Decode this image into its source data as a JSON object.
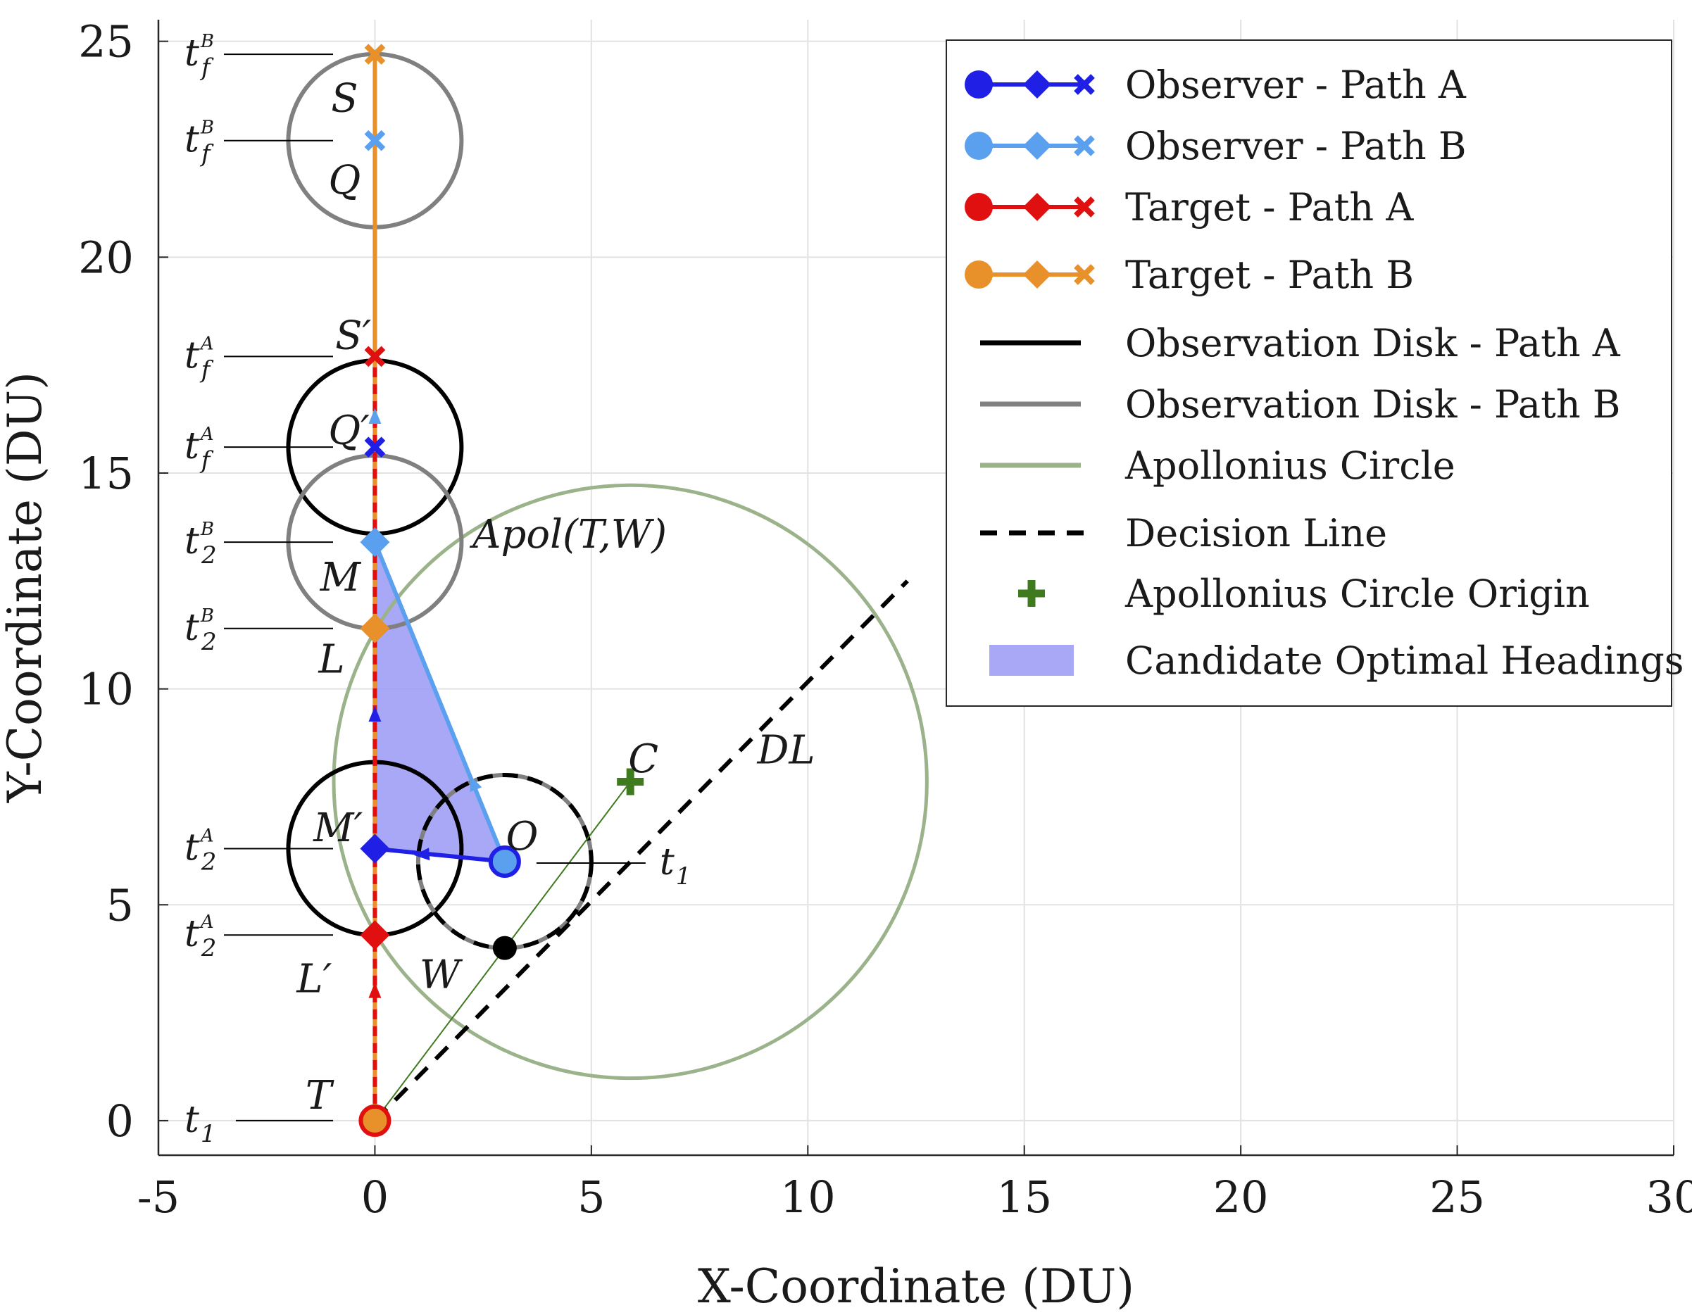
{
  "chart_data": {
    "type": "scatter",
    "xlabel": "X-Coordinate (DU)",
    "ylabel": "Y-Coordinate (DU)",
    "xlim": [
      -5,
      30
    ],
    "ylim": [
      -0.8,
      25.5
    ],
    "xticks": [
      -5,
      0,
      5,
      10,
      15,
      20,
      25,
      30
    ],
    "yticks": [
      0,
      5,
      10,
      15,
      20,
      25
    ],
    "xtick_labels": [
      "-5",
      "0",
      "5",
      "10",
      "15",
      "20",
      "25",
      "30"
    ],
    "ytick_labels": [
      "0",
      "5",
      "10",
      "15",
      "20",
      "25"
    ],
    "grid": true,
    "legend_position": "top-right",
    "colors": {
      "observer_a": "#1f1fe6",
      "observer_b": "#5aa0ee",
      "target_a": "#e01010",
      "target_b": "#e8902a",
      "disk_a": "#000000",
      "disk_b": "#808080",
      "apollonius": "#9bb38a",
      "origin": "#3f7a1e",
      "candidate": "#9999f5"
    },
    "legend": [
      {
        "key": "observer_a",
        "label": "Observer - Path A"
      },
      {
        "key": "observer_b",
        "label": "Observer - Path B"
      },
      {
        "key": "target_a",
        "label": "Target - Path A"
      },
      {
        "key": "target_b",
        "label": "Target - Path B"
      },
      {
        "key": "disk_a",
        "label": "Observation Disk - Path A"
      },
      {
        "key": "disk_b",
        "label": "Observation Disk - Path B"
      },
      {
        "key": "apollonius",
        "label": "Apollonius Circle"
      },
      {
        "key": "decision",
        "label": "Decision Line"
      },
      {
        "key": "origin",
        "label": "Apollonius Circle Origin"
      },
      {
        "key": "candidate",
        "label": "Candidate Optimal Headings"
      }
    ],
    "series": {
      "observer_a": [
        [
          3,
          6
        ],
        [
          0,
          6.3
        ],
        [
          0,
          15.6
        ]
      ],
      "observer_b": [
        [
          3,
          6
        ],
        [
          0,
          13.4
        ],
        [
          0,
          22.7
        ]
      ],
      "target_a": [
        [
          0,
          0
        ],
        [
          0,
          4.3
        ],
        [
          0,
          17.7
        ]
      ],
      "target_b": [
        [
          0,
          0
        ],
        [
          0,
          11.4
        ],
        [
          0,
          24.7
        ]
      ]
    },
    "disks": [
      {
        "path": "A",
        "cx": 0,
        "cy": 6.3,
        "r": 2
      },
      {
        "path": "A",
        "cx": 0,
        "cy": 15.6,
        "r": 2
      },
      {
        "path": "B",
        "cx": 0,
        "cy": 13.4,
        "r": 2
      },
      {
        "path": "B",
        "cx": 0,
        "cy": 22.7,
        "r": 2
      },
      {
        "path": "A/B",
        "cx": 3,
        "cy": 6,
        "r": 2
      }
    ],
    "apollonius": {
      "cx": 5.9,
      "cy": 7.85,
      "r": 6.85,
      "label": "Apol(T,W)"
    },
    "apollonius_origin": [
      5.9,
      7.85
    ],
    "decision_line": [
      [
        0,
        0
      ],
      [
        12.3,
        12.5
      ]
    ],
    "candidate_region": [
      [
        0,
        11.4
      ],
      [
        0,
        13.4
      ],
      [
        3,
        6
      ],
      [
        0,
        6.3
      ]
    ],
    "point_W": [
      3,
      4
    ],
    "point_labels": [
      {
        "text": "S",
        "x": -0.7,
        "y": 23.7
      },
      {
        "text": "Q",
        "x": -0.7,
        "y": 21.8
      },
      {
        "text": "S′",
        "x": -0.5,
        "y": 18.2
      },
      {
        "text": "Q′",
        "x": -0.6,
        "y": 16.0
      },
      {
        "text": "M",
        "x": -0.8,
        "y": 12.6
      },
      {
        "text": "L",
        "x": -1.0,
        "y": 10.7
      },
      {
        "text": "M′",
        "x": -0.85,
        "y": 6.8
      },
      {
        "text": "L′",
        "x": -1.4,
        "y": 3.3
      },
      {
        "text": "T",
        "x": -1.3,
        "y": 0.6
      },
      {
        "text": "O",
        "x": 3.4,
        "y": 6.6
      },
      {
        "text": "W",
        "x": 1.5,
        "y": 3.4
      },
      {
        "text": "C",
        "x": 6.2,
        "y": 8.4
      },
      {
        "text": "DL",
        "x": 9.5,
        "y": 8.6
      }
    ],
    "time_labels": [
      {
        "base": "t",
        "sup": "B",
        "sub": "f",
        "y": 24.7
      },
      {
        "base": "t",
        "sup": "B",
        "sub": "f",
        "y": 22.7
      },
      {
        "base": "t",
        "sup": "A",
        "sub": "f",
        "y": 17.7
      },
      {
        "base": "t",
        "sup": "A",
        "sub": "f",
        "y": 15.6
      },
      {
        "base": "t",
        "sup": "B",
        "sub": "2",
        "y": 13.4
      },
      {
        "base": "t",
        "sup": "B",
        "sub": "2",
        "y": 11.4
      },
      {
        "base": "t",
        "sup": "A",
        "sub": "2",
        "y": 6.3
      },
      {
        "base": "t",
        "sup": "A",
        "sub": "2",
        "y": 4.3
      },
      {
        "base": "t",
        "sup": "",
        "sub": "1",
        "y": 0
      }
    ],
    "observer_time_label": {
      "base": "t",
      "sub": "1",
      "x": 3,
      "y": 6
    }
  }
}
